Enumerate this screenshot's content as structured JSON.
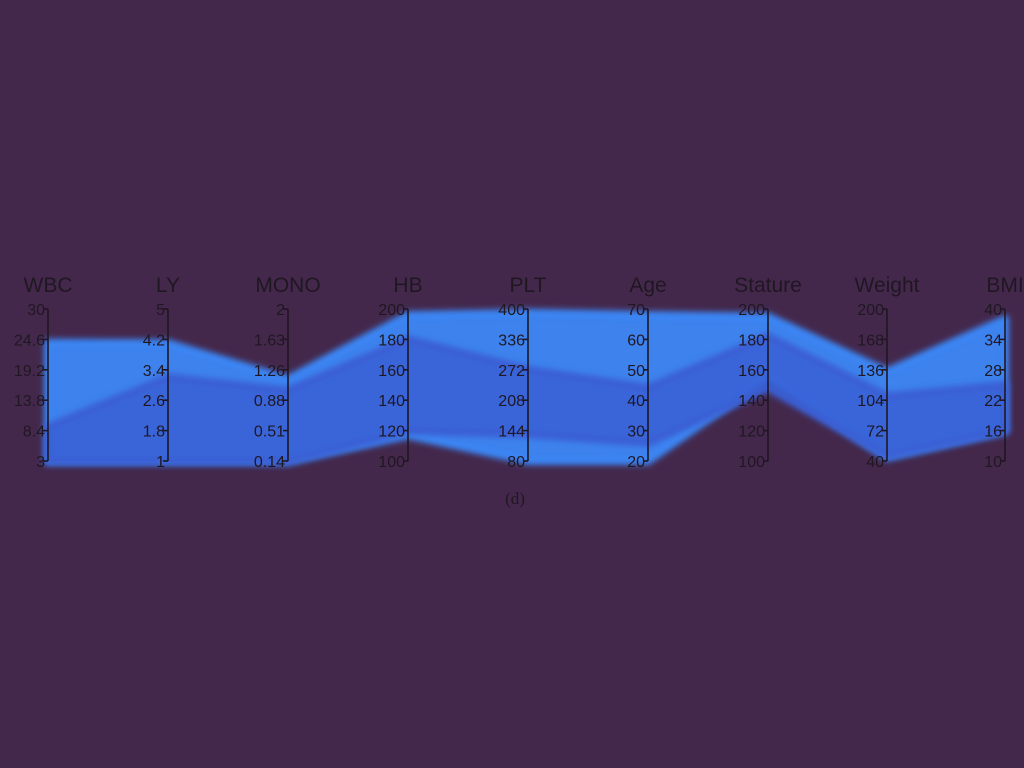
{
  "chart_data": {
    "type": "parallel-coordinates",
    "caption": "(d)",
    "colors": {
      "background": "#44284c",
      "band_light": "#3b86f5",
      "band_dark": "#3a5fd4",
      "axis": "#1f1722",
      "text": "#1f1722"
    },
    "axes": [
      {
        "name": "WBC",
        "ticks": [
          "30",
          "24.6",
          "19.2",
          "13.8",
          "8.4",
          "3"
        ],
        "range": [
          3,
          30
        ]
      },
      {
        "name": "LY",
        "ticks": [
          "5",
          "4.2",
          "3.4",
          "2.6",
          "1.8",
          "1"
        ],
        "range": [
          1,
          5
        ]
      },
      {
        "name": "MONO",
        "ticks": [
          "2",
          "1.63",
          "1.26",
          "0.88",
          "0.51",
          "0.14"
        ],
        "range": [
          0.14,
          2
        ]
      },
      {
        "name": "HB",
        "ticks": [
          "200",
          "180",
          "160",
          "140",
          "120",
          "100"
        ],
        "range": [
          100,
          200
        ]
      },
      {
        "name": "PLT",
        "ticks": [
          "400",
          "336",
          "272",
          "208",
          "144",
          "80"
        ],
        "range": [
          80,
          400
        ]
      },
      {
        "name": "Age",
        "ticks": [
          "70",
          "60",
          "50",
          "40",
          "30",
          "20"
        ],
        "range": [
          20,
          70
        ]
      },
      {
        "name": "Stature",
        "ticks": [
          "200",
          "180",
          "160",
          "140",
          "120",
          "100"
        ],
        "range": [
          100,
          200
        ]
      },
      {
        "name": "Weight",
        "ticks": [
          "200",
          "168",
          "136",
          "104",
          "72",
          "40"
        ],
        "range": [
          40,
          200
        ]
      },
      {
        "name": "BMI",
        "ticks": [
          "40",
          "34",
          "28",
          "22",
          "16",
          "10"
        ],
        "range": [
          10,
          40
        ]
      }
    ],
    "bands": [
      {
        "shade": "light",
        "upper": [
          24,
          4.1,
          1.14,
          196,
          392,
          68,
          195,
          134,
          38
        ],
        "lower": [
          3,
          1,
          0.14,
          117,
          80,
          20,
          155,
          44,
          16
        ]
      },
      {
        "shade": "dark",
        "upper": [
          9,
          3.2,
          1.0,
          180,
          272,
          44,
          182,
          108,
          25
        ],
        "lower": [
          3,
          1,
          0.14,
          120,
          136,
          26,
          148,
          46,
          16
        ]
      }
    ]
  }
}
